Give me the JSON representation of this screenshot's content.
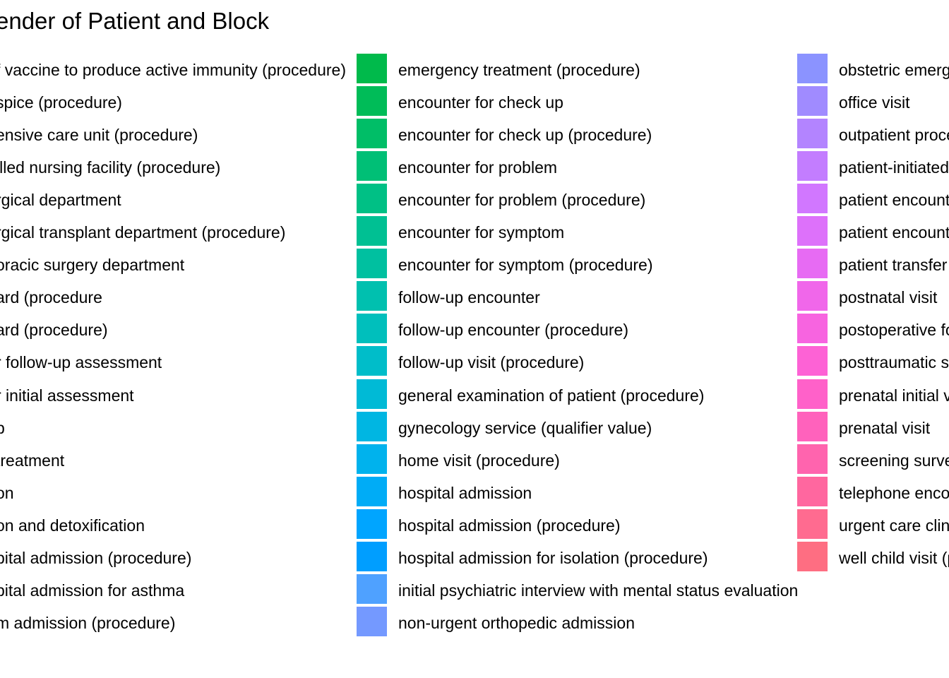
{
  "title": "ender of Patient and Block",
  "chart_data": {
    "type": "legend",
    "title": "ender of Patient and Block",
    "legend_col1_partial": [
      "f vaccine to produce active immunity (procedure)",
      "spice (procedure)",
      "ensive care unit (procedure)",
      "illed nursing facility (procedure)",
      "rgical department",
      "rgical transplant department (procedure)",
      "oracic surgery department",
      "ard (procedure",
      "ard (procedure)",
      "r follow-up assessment",
      "r initial assessment",
      "p",
      " treatment",
      "on",
      "on and detoxification",
      "pital admission (procedure)",
      "pital admission for asthma",
      "m admission (procedure)"
    ],
    "legend_col2": [
      {
        "label": "emergency treatment (procedure)",
        "color": "#00BA4B"
      },
      {
        "label": "encounter for check up",
        "color": "#00BC58"
      },
      {
        "label": "encounter for check up (procedure)",
        "color": "#00BE67"
      },
      {
        "label": "encounter for problem",
        "color": "#00BF76"
      },
      {
        "label": "encounter for problem (procedure)",
        "color": "#00C085"
      },
      {
        "label": "encounter for symptom",
        "color": "#00C093"
      },
      {
        "label": "encounter for symptom (procedure)",
        "color": "#00C0A0"
      },
      {
        "label": "follow-up encounter",
        "color": "#00C0AF"
      },
      {
        "label": "follow-up encounter (procedure)",
        "color": "#00BFBC"
      },
      {
        "label": "follow-up visit (procedure)",
        "color": "#00BDC9"
      },
      {
        "label": "general examination of patient (procedure)",
        "color": "#00BAD6"
      },
      {
        "label": "gynecology service (qualifier value)",
        "color": "#00B6E2"
      },
      {
        "label": "home visit (procedure)",
        "color": "#00B2ED"
      },
      {
        "label": "hospital admission",
        "color": "#00ACF6"
      },
      {
        "label": "hospital admission (procedure)",
        "color": "#00A5FF"
      },
      {
        "label": "hospital admission for isolation (procedure)",
        "color": "#009EFF"
      },
      {
        "label": "initial psychiatric interview with mental status evaluation",
        "color": "#4FA1FF"
      },
      {
        "label": "non-urgent orthopedic admission",
        "color": "#7499FF"
      }
    ],
    "legend_col3": [
      {
        "label": "obstetric emerg",
        "color": "#8B93FF"
      },
      {
        "label": "office visit",
        "color": "#A08BFF"
      },
      {
        "label": "outpatient proce",
        "color": "#B384FF"
      },
      {
        "label": "patient-initiated",
        "color": "#C37DFF"
      },
      {
        "label": "patient encounte",
        "color": "#D177FF"
      },
      {
        "label": "patient encounte",
        "color": "#DD71FA"
      },
      {
        "label": "patient transfer",
        "color": "#E76BF3"
      },
      {
        "label": "postnatal visit",
        "color": "#F067EA"
      },
      {
        "label": "postoperative fo",
        "color": "#F764E0"
      },
      {
        "label": "posttraumatic st",
        "color": "#FD62D5"
      },
      {
        "label": "prenatal initial vi",
        "color": "#FF61C9"
      },
      {
        "label": "prenatal visit",
        "color": "#FF62BC"
      },
      {
        "label": "screening surve",
        "color": "#FF64AE"
      },
      {
        "label": "telephone enco",
        "color": "#FF679F"
      },
      {
        "label": "urgent care clini",
        "color": "#FF6B90"
      },
      {
        "label": "well child visit (p",
        "color": "#FE6E82"
      }
    ]
  }
}
